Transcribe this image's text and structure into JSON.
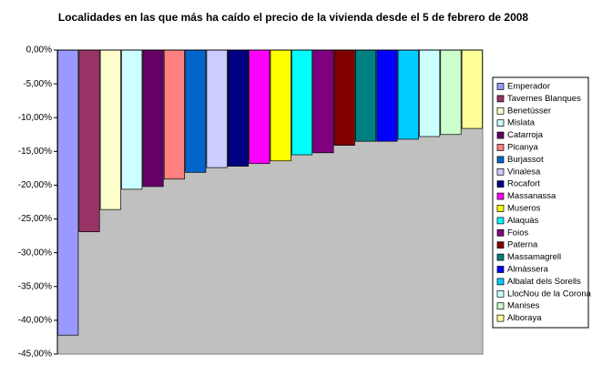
{
  "chart_data": {
    "type": "bar",
    "title": "Localidades en las que más ha caído el precio de la vivienda desde el 5 de febrero de 2008",
    "ylim": [
      -45,
      0
    ],
    "yticks": [
      {
        "value": 0,
        "label": "0,00%"
      },
      {
        "value": -5,
        "label": "-5,00%"
      },
      {
        "value": -10,
        "label": "-10,00%"
      },
      {
        "value": -15,
        "label": "-15,00%"
      },
      {
        "value": -20,
        "label": "-20,00%"
      },
      {
        "value": -25,
        "label": "-25,00%"
      },
      {
        "value": -30,
        "label": "-30,00%"
      },
      {
        "value": -35,
        "label": "-35,00%"
      },
      {
        "value": -40,
        "label": "-40,00%"
      },
      {
        "value": -45,
        "label": "-45,00%"
      }
    ],
    "grid": false,
    "legend": "right",
    "series": [
      {
        "name": "Emperador",
        "color": "#9999ff",
        "values": [
          -42.2
        ]
      },
      {
        "name": "Tavernes Blanques",
        "color": "#993366",
        "values": [
          -26.9
        ]
      },
      {
        "name": "Benetússer",
        "color": "#ffffcc",
        "values": [
          -23.6
        ]
      },
      {
        "name": "Mislata",
        "color": "#ccffff",
        "values": [
          -20.6
        ]
      },
      {
        "name": "Catarroja",
        "color": "#660066",
        "values": [
          -20.2
        ]
      },
      {
        "name": "Picanya",
        "color": "#ff8080",
        "values": [
          -19.1
        ]
      },
      {
        "name": "Burjassot",
        "color": "#0066cc",
        "values": [
          -18.1
        ]
      },
      {
        "name": "Vinalesa",
        "color": "#ccccff",
        "values": [
          -17.4
        ]
      },
      {
        "name": "Rocafort",
        "color": "#000080",
        "values": [
          -17.2
        ]
      },
      {
        "name": "Massanassa",
        "color": "#ff00ff",
        "values": [
          -16.8
        ]
      },
      {
        "name": "Museros",
        "color": "#ffff00",
        "values": [
          -16.4
        ]
      },
      {
        "name": "Alaquàs",
        "color": "#00ffff",
        "values": [
          -15.5
        ]
      },
      {
        "name": "Foios",
        "color": "#800080",
        "values": [
          -15.2
        ]
      },
      {
        "name": "Paterna",
        "color": "#800000",
        "values": [
          -14.1
        ]
      },
      {
        "name": "Massamagrell",
        "color": "#008080",
        "values": [
          -13.5
        ]
      },
      {
        "name": "Almàssera",
        "color": "#0000ff",
        "values": [
          -13.5
        ]
      },
      {
        "name": "Albalat dels Sorells",
        "color": "#00ccff",
        "values": [
          -13.2
        ]
      },
      {
        "name": "LlocNou de la Corona",
        "color": "#ccffff",
        "values": [
          -12.8
        ]
      },
      {
        "name": "Manises",
        "color": "#ccffcc",
        "values": [
          -12.5
        ]
      },
      {
        "name": "Alboraya",
        "color": "#ffff99",
        "values": [
          -11.6
        ]
      }
    ]
  }
}
